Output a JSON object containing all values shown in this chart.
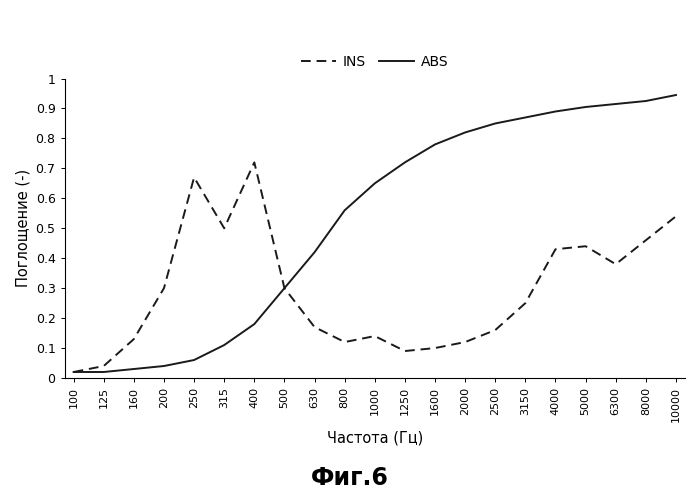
{
  "title": "Фиг.6",
  "xlabel": "Частота (Гц)",
  "ylabel": "Поглощение (-)",
  "legend_labels": [
    "INS",
    "ABS"
  ],
  "x_ticks": [
    100,
    125,
    160,
    200,
    250,
    315,
    400,
    500,
    630,
    800,
    1000,
    1250,
    1600,
    2000,
    2500,
    3150,
    4000,
    5000,
    6300,
    8000,
    10000
  ],
  "ylim": [
    0,
    1.0
  ],
  "background_color": "#ffffff",
  "line_color": "#1a1a1a",
  "ins_y": [
    0.02,
    0.04,
    0.13,
    0.3,
    0.67,
    0.5,
    0.72,
    0.3,
    0.17,
    0.12,
    0.14,
    0.09,
    0.1,
    0.12,
    0.16,
    0.25,
    0.43,
    0.44,
    0.38,
    0.46,
    0.54
  ],
  "abs_y": [
    0.02,
    0.02,
    0.03,
    0.04,
    0.06,
    0.11,
    0.18,
    0.3,
    0.42,
    0.56,
    0.65,
    0.72,
    0.78,
    0.82,
    0.85,
    0.87,
    0.89,
    0.905,
    0.915,
    0.925,
    0.945
  ]
}
